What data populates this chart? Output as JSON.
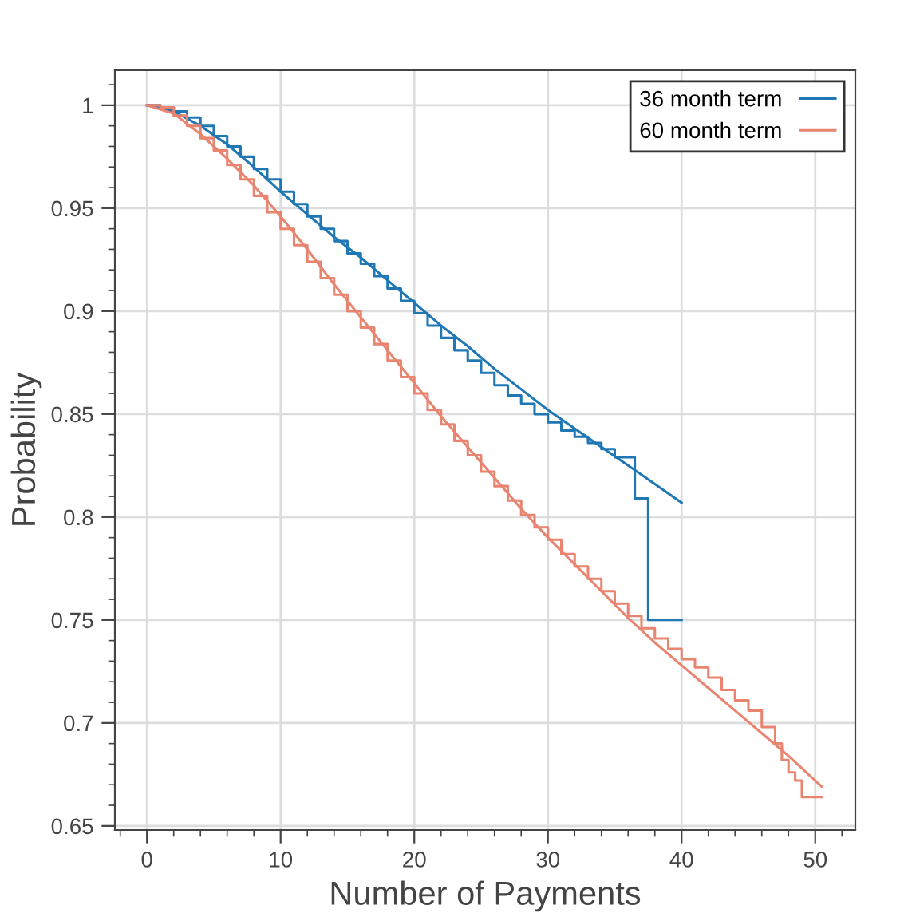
{
  "chart_data": {
    "type": "step",
    "xlabel": "Number of Payments",
    "ylabel": "Probability",
    "xlim": [
      -2.4,
      53
    ],
    "ylim": [
      0.648,
      1.017
    ],
    "xticks": [
      0,
      10,
      20,
      30,
      40,
      50
    ],
    "yticks": [
      0.65,
      0.7,
      0.75,
      0.8,
      0.85,
      0.9,
      0.95,
      1
    ],
    "grid": true,
    "legend": "top right",
    "series": [
      {
        "name": "36 month term",
        "color": "#1f77b4",
        "x": [
          0,
          1,
          2,
          3,
          4,
          5,
          6,
          7,
          8,
          9,
          10,
          11,
          12,
          13,
          14,
          15,
          16,
          17,
          18,
          19,
          20,
          21,
          22,
          23,
          24,
          25,
          26,
          27,
          28,
          29,
          30,
          31,
          32,
          33,
          34,
          35,
          36.5,
          37.5,
          40
        ],
        "values": [
          1.0,
          0.999,
          0.997,
          0.994,
          0.99,
          0.985,
          0.98,
          0.975,
          0.969,
          0.964,
          0.958,
          0.952,
          0.946,
          0.94,
          0.934,
          0.928,
          0.923,
          0.917,
          0.911,
          0.905,
          0.899,
          0.893,
          0.887,
          0.881,
          0.876,
          0.87,
          0.864,
          0.859,
          0.855,
          0.85,
          0.846,
          0.842,
          0.839,
          0.836,
          0.833,
          0.829,
          0.809,
          0.75,
          0.75
        ]
      },
      {
        "color": "#1f77b4",
        "type": "line",
        "x": [
          0,
          2,
          4,
          6,
          8,
          10,
          12,
          14,
          16,
          18,
          20,
          22,
          24,
          26,
          28,
          30,
          32,
          34,
          36,
          38,
          40
        ],
        "values": [
          1.0,
          0.997,
          0.99,
          0.981,
          0.97,
          0.958,
          0.947,
          0.936,
          0.926,
          0.915,
          0.904,
          0.893,
          0.883,
          0.872,
          0.862,
          0.852,
          0.843,
          0.834,
          0.825,
          0.816,
          0.807
        ]
      },
      {
        "name": "60 month term",
        "color": "#e8846f",
        "x": [
          0,
          1,
          2,
          3,
          4,
          5,
          6,
          7,
          8,
          9,
          10,
          11,
          12,
          13,
          14,
          15,
          16,
          17,
          18,
          19,
          20,
          21,
          22,
          23,
          24,
          25,
          26,
          27,
          28,
          29,
          30,
          31,
          32,
          33,
          34,
          35,
          36,
          37,
          38,
          39,
          40,
          41,
          42,
          43,
          44,
          45,
          46,
          47,
          47.5,
          48,
          48.5,
          49,
          50.5
        ],
        "values": [
          1.0,
          0.999,
          0.995,
          0.99,
          0.984,
          0.978,
          0.971,
          0.964,
          0.956,
          0.948,
          0.94,
          0.932,
          0.924,
          0.916,
          0.908,
          0.9,
          0.892,
          0.884,
          0.876,
          0.868,
          0.86,
          0.852,
          0.845,
          0.837,
          0.83,
          0.822,
          0.815,
          0.808,
          0.801,
          0.795,
          0.789,
          0.782,
          0.776,
          0.77,
          0.764,
          0.758,
          0.752,
          0.746,
          0.741,
          0.736,
          0.731,
          0.727,
          0.722,
          0.716,
          0.711,
          0.706,
          0.698,
          0.69,
          0.682,
          0.676,
          0.672,
          0.664,
          0.664
        ]
      },
      {
        "color": "#e8846f",
        "type": "line",
        "x": [
          0,
          2,
          4,
          6,
          8,
          10,
          12,
          14,
          16,
          18,
          20,
          22,
          24,
          26,
          28,
          30,
          32,
          34,
          36,
          38,
          40,
          42,
          44,
          46,
          48,
          50.5
        ],
        "values": [
          1.0,
          0.996,
          0.986,
          0.974,
          0.961,
          0.946,
          0.93,
          0.913,
          0.897,
          0.881,
          0.865,
          0.849,
          0.834,
          0.819,
          0.804,
          0.79,
          0.777,
          0.764,
          0.751,
          0.739,
          0.728,
          0.717,
          0.706,
          0.695,
          0.684,
          0.669
        ]
      }
    ]
  }
}
